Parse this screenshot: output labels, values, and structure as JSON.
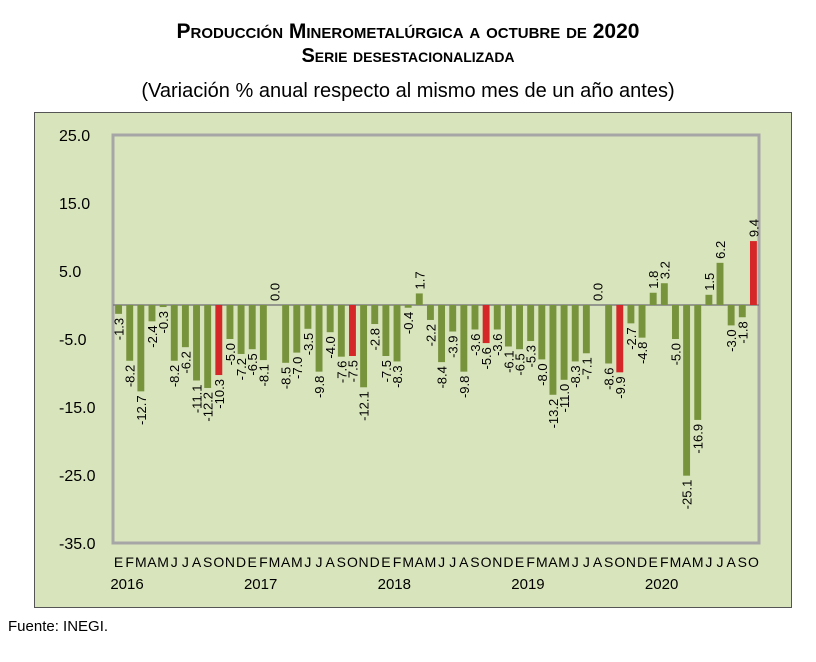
{
  "title_line1": "Producción Minerometalúrgica a octubre de 2020",
  "title_line2": "Serie desestacionalizada",
  "subtitle": "(Variación % anual respecto al mismo mes de un año antes)",
  "source": "Fuente: INEGI.",
  "colors": {
    "plot_bg": "#d8e4bc",
    "bar": "#77933c",
    "highlight": "#d62728",
    "frame": "#a6a6a6"
  },
  "chart_data": {
    "type": "bar",
    "ylim": [
      -35,
      25
    ],
    "yticks": [
      "25.0",
      "15.0",
      "5.0",
      "-5.0",
      "-15.0",
      "-25.0",
      "-35.0"
    ],
    "ytick_values": [
      25,
      15,
      5,
      -5,
      -15,
      -25,
      -35
    ],
    "month_letters": [
      "E",
      "F",
      "M",
      "A",
      "M",
      "J",
      "J",
      "A",
      "S",
      "O",
      "N",
      "D"
    ],
    "years": [
      "2016",
      "2017",
      "2018",
      "2019",
      "2020"
    ],
    "highlight_month": "O",
    "values": [
      -1.3,
      -8.2,
      -12.7,
      -2.4,
      -0.3,
      -8.2,
      -6.2,
      -11.1,
      -12.2,
      -10.3,
      -5.0,
      -7.2,
      -6.5,
      -8.1,
      0.0,
      -8.5,
      -7.0,
      -3.5,
      -9.8,
      -4.0,
      -7.6,
      -7.5,
      -12.1,
      -2.8,
      -7.5,
      -8.3,
      -0.4,
      1.7,
      -2.2,
      -8.4,
      -3.9,
      -9.8,
      -3.6,
      -5.6,
      -3.6,
      -6.1,
      -6.5,
      -5.3,
      -8.0,
      -13.2,
      -11.0,
      -8.3,
      -7.1,
      0.0,
      -8.6,
      -9.9,
      -2.7,
      -4.8,
      1.8,
      3.2,
      -5.0,
      -25.1,
      -16.9,
      1.5,
      6.2,
      -3.0,
      -1.8,
      9.4
    ],
    "value_labels": [
      "-1.3",
      "-8.2",
      "-12.7",
      "-2.4",
      "-0.3",
      "-8.2",
      "-6.2",
      "-11.1",
      "-12.2",
      "-10.3",
      "-5.0",
      "-7.2",
      "-6.5",
      "-8.1",
      "0.0",
      "-8.5",
      "-7.0",
      "-3.5",
      "-9.8",
      "-4.0",
      "-7.6",
      "-7.5",
      "-12.1",
      "-2.8",
      "-7.5",
      "-8.3",
      "-0.4",
      "1.7",
      "-2.2",
      "-8.4",
      "-3.9",
      "-9.8",
      "-3.6",
      "-5.6",
      "-3.6",
      "-6.1",
      "-6.5",
      "-5.3",
      "-8.0",
      "-13.2",
      "-11.0",
      "-8.3",
      "-7.1",
      "0.0",
      "-8.6",
      "-9.9",
      "-2.7",
      "-4.8",
      "1.8",
      "3.2",
      "-5.0",
      "-25.1",
      "-16.9",
      "1.5",
      "6.2",
      "-3.0",
      "-1.8",
      "9.4"
    ]
  }
}
